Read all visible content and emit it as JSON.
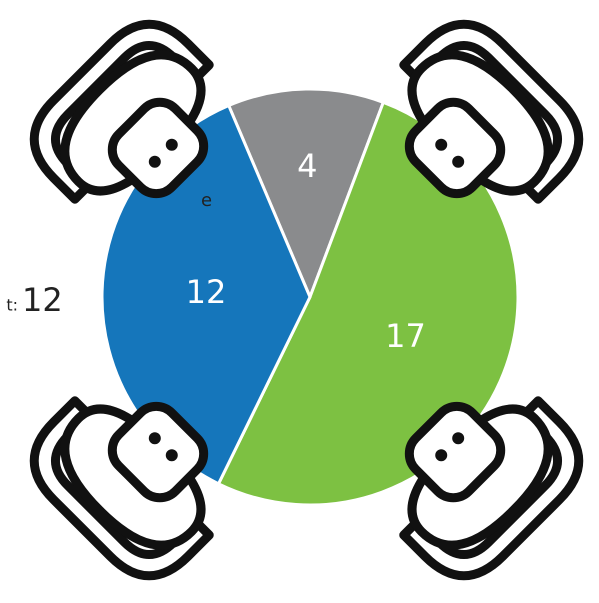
{
  "chart_data": {
    "type": "pie",
    "categories": [
      null,
      null,
      null
    ],
    "values": [
      4,
      17,
      12
    ],
    "colors": [
      "#8a8b8d",
      "#7dc142",
      "#1576bb"
    ],
    "start_angle": -23,
    "annotations": [
      "e",
      "t:",
      "12"
    ]
  }
}
